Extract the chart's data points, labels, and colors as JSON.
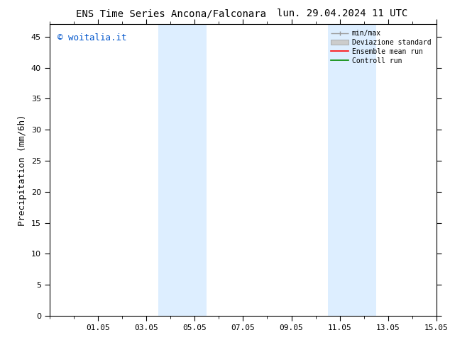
{
  "title_left": "ENS Time Series Ancona/Falconara",
  "title_right": "lun. 29.04.2024 11 UTC",
  "ylabel": "Precipitation (mm/6h)",
  "ylim": [
    0,
    47
  ],
  "yticks": [
    0,
    5,
    10,
    15,
    20,
    25,
    30,
    35,
    40,
    45
  ],
  "xlim": [
    0,
    16
  ],
  "xtick_labels": [
    "01.05",
    "03.05",
    "05.05",
    "07.05",
    "09.05",
    "11.05",
    "13.05",
    "15.05"
  ],
  "xtick_offsets": [
    2,
    4,
    6,
    8,
    10,
    12,
    14,
    16
  ],
  "shaded_bands": [
    {
      "start": 4.5,
      "end": 6.5
    },
    {
      "start": 11.5,
      "end": 13.5
    }
  ],
  "band_color": "#ddeeff",
  "watermark": "© woitalia.it",
  "watermark_color": "#0055cc",
  "legend_labels": [
    "min/max",
    "Deviazione standard",
    "Ensemble mean run",
    "Controll run"
  ],
  "legend_colors_line": [
    "#999999",
    "#cccccc",
    "#ff0000",
    "#008800"
  ],
  "bg_color": "#ffffff",
  "title_fontsize": 10,
  "tick_fontsize": 8,
  "ylabel_fontsize": 9,
  "watermark_fontsize": 9
}
